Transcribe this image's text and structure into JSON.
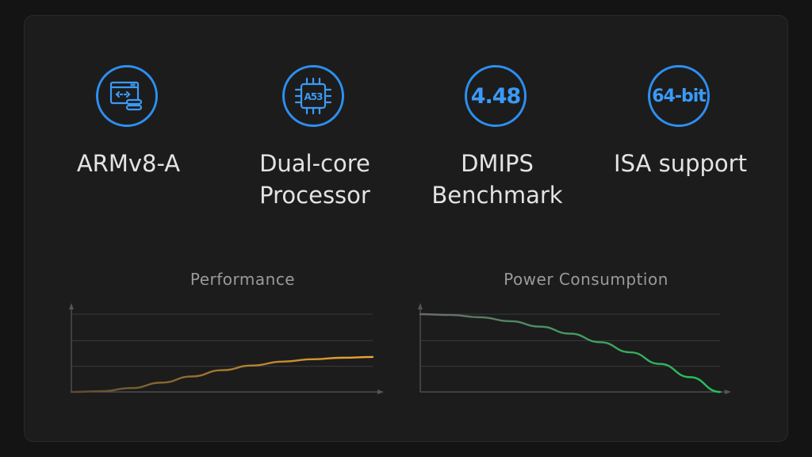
{
  "features": [
    {
      "icon": "code-window-icon",
      "label": "ARMv8-A"
    },
    {
      "icon": "chip-icon",
      "chip_text": "A53",
      "label": "Dual-core\nProcessor"
    },
    {
      "icon": "value-badge-icon",
      "value": "4.48",
      "label": "DMIPS\nBenchmark"
    },
    {
      "icon": "value-badge-icon",
      "value": "64-bit",
      "label": "ISA support"
    }
  ],
  "colors": {
    "accent": "#2d8ff0",
    "performance_line": "#f0a830",
    "power_line": "#22c75a"
  },
  "chart_data": [
    {
      "type": "line",
      "title": "Performance",
      "xlabel": "",
      "ylabel": "",
      "xlim": [
        0,
        1
      ],
      "ylim": [
        0,
        1
      ],
      "grid": true,
      "series": [
        {
          "x": [
            0,
            0.1,
            0.2,
            0.3,
            0.4,
            0.5,
            0.6,
            0.7,
            0.8,
            0.9,
            1.0
          ],
          "y": [
            0,
            0.01,
            0.05,
            0.12,
            0.2,
            0.28,
            0.34,
            0.39,
            0.42,
            0.44,
            0.45
          ]
        }
      ]
    },
    {
      "type": "line",
      "title": "Power Consumption",
      "xlabel": "",
      "ylabel": "",
      "xlim": [
        0,
        1
      ],
      "ylim": [
        0,
        1
      ],
      "grid": true,
      "series": [
        {
          "x": [
            0,
            0.1,
            0.2,
            0.3,
            0.4,
            0.5,
            0.6,
            0.7,
            0.8,
            0.9,
            1.0
          ],
          "y": [
            1,
            0.99,
            0.96,
            0.91,
            0.84,
            0.75,
            0.64,
            0.51,
            0.36,
            0.19,
            0
          ]
        }
      ]
    }
  ]
}
